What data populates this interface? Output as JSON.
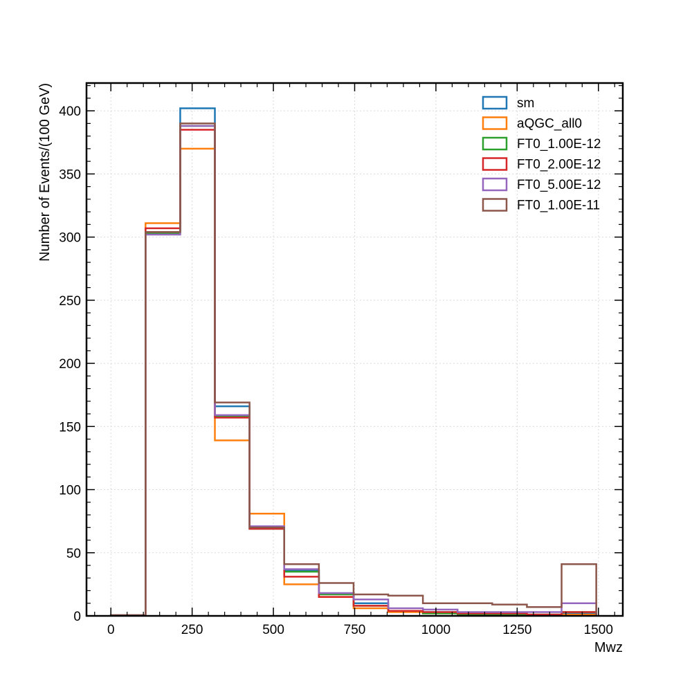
{
  "chart_data": {
    "type": "histogram",
    "xlabel": "Mwz",
    "ylabel": "Number of Events/(100 GeV)",
    "xlim": [
      -75,
      1575
    ],
    "ylim": [
      0,
      422
    ],
    "grid": true,
    "legend_position": "top-right",
    "bin_edges": [
      0,
      106.67,
      213.33,
      320,
      426.67,
      533.33,
      640,
      746.67,
      853.33,
      960,
      1066.67,
      1173.33,
      1280,
      1386.67,
      1493.33
    ],
    "x_ticks": [
      0,
      250,
      500,
      750,
      1000,
      1250,
      1500
    ],
    "x_tick_labels": [
      "0",
      "250",
      "500",
      "750",
      "1000",
      "1250",
      "1500"
    ],
    "y_ticks": [
      0,
      50,
      100,
      150,
      200,
      250,
      300,
      350,
      400
    ],
    "y_tick_labels": [
      "0",
      "50",
      "100",
      "150",
      "200",
      "250",
      "300",
      "350",
      "400"
    ],
    "series": [
      {
        "name": "sm",
        "color": "#1f77b4",
        "values": [
          0.5,
          304,
          402,
          166,
          69,
          36,
          18,
          10,
          4,
          3,
          2,
          2,
          1,
          2
        ]
      },
      {
        "name": "aQGC_all0",
        "color": "#ff7f0e",
        "values": [
          0.5,
          311,
          370,
          139,
          81,
          25,
          15,
          6,
          3,
          2,
          1,
          1,
          1,
          1
        ]
      },
      {
        "name": "FT0_1.00E-12",
        "color": "#2ca02c",
        "values": [
          0.5,
          303,
          388,
          158,
          69,
          35,
          17,
          8,
          4,
          2,
          1,
          1,
          1,
          3
        ]
      },
      {
        "name": "FT0_2.00E-12",
        "color": "#d62728",
        "values": [
          0.5,
          307,
          385,
          157,
          69,
          31,
          15,
          8,
          4,
          3,
          2,
          2,
          1,
          3
        ]
      },
      {
        "name": "FT0_5.00E-12",
        "color": "#9467bd",
        "values": [
          0.5,
          302,
          388,
          159,
          71,
          37,
          18,
          13,
          6,
          5,
          3,
          3,
          3,
          10
        ]
      },
      {
        "name": "FT0_1.00E-11",
        "color": "#8c564b",
        "values": [
          0.5,
          304,
          390,
          169,
          70,
          41,
          26,
          17,
          16,
          10,
          10,
          9,
          7,
          41
        ]
      }
    ]
  }
}
